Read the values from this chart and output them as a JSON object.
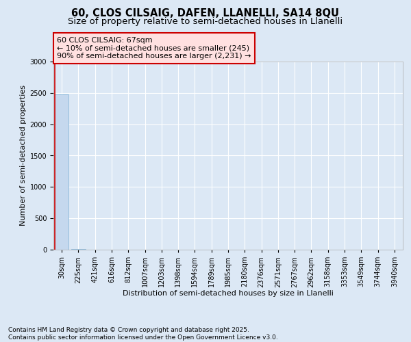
{
  "title_line1": "60, CLOS CILSAIG, DAFEN, LLANELLI, SA14 8QU",
  "title_line2": "Size of property relative to semi-detached houses in Llanelli",
  "xlabel": "Distribution of semi-detached houses by size in Llanelli",
  "ylabel": "Number of semi-detached properties",
  "annotation_title": "60 CLOS CILSAIG: 67sqm",
  "annotation_line2": "← 10% of semi-detached houses are smaller (245)",
  "annotation_line3": "90% of semi-detached houses are larger (2,231) →",
  "footer_line1": "Contains HM Land Registry data © Crown copyright and database right 2025.",
  "footer_line2": "Contains public sector information licensed under the Open Government Licence v3.0.",
  "categories": [
    "30sqm",
    "225sqm",
    "421sqm",
    "616sqm",
    "812sqm",
    "1007sqm",
    "1203sqm",
    "1398sqm",
    "1594sqm",
    "1789sqm",
    "1985sqm",
    "2180sqm",
    "2376sqm",
    "2571sqm",
    "2767sqm",
    "2962sqm",
    "3158sqm",
    "3353sqm",
    "3549sqm",
    "3744sqm",
    "3940sqm"
  ],
  "values": [
    2476,
    15,
    0,
    0,
    0,
    0,
    0,
    0,
    0,
    0,
    0,
    0,
    0,
    0,
    0,
    0,
    0,
    0,
    0,
    0,
    0
  ],
  "bar_color": "#c5d8ee",
  "bar_edge_color": "#7aafd4",
  "annotation_box_facecolor": "#ffe0e0",
  "annotation_box_edgecolor": "#cc0000",
  "red_line_color": "#cc0000",
  "background_color": "#dce8f5",
  "plot_bg_color": "#dce8f5",
  "ylim": [
    0,
    3000
  ],
  "yticks": [
    0,
    500,
    1000,
    1500,
    2000,
    2500,
    3000
  ],
  "grid_color": "#ffffff",
  "title_fontsize": 10.5,
  "subtitle_fontsize": 9.5,
  "ylabel_fontsize": 8,
  "xlabel_fontsize": 8,
  "tick_fontsize": 7,
  "annotation_fontsize": 8,
  "footer_fontsize": 6.5
}
